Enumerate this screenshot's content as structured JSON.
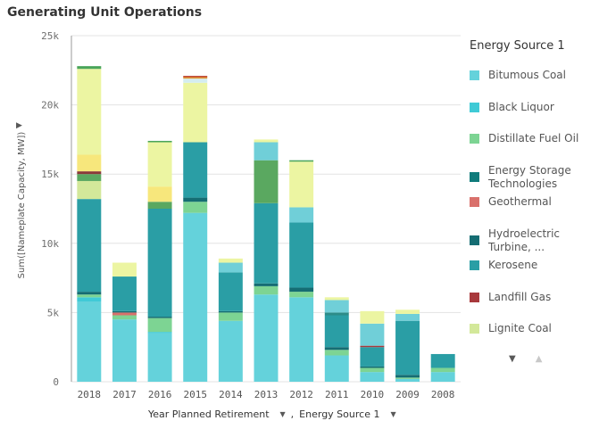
{
  "chart_data": {
    "type": "bar",
    "stacked": true,
    "title": "Generating Unit Operations",
    "xlabel": "Year Planned Retirement",
    "ylabel": "Sum([Nameplate Capacity, MW])",
    "ylim": [
      0,
      25000
    ],
    "yticks": [
      0,
      5000,
      10000,
      15000,
      20000,
      25000
    ],
    "ytick_labels": [
      "0",
      "5k",
      "10k",
      "15k",
      "20k",
      "25k"
    ],
    "grid": true,
    "legend_position": "right",
    "categories": [
      "2018",
      "2017",
      "2016",
      "2015",
      "2014",
      "2013",
      "2012",
      "2011",
      "2010",
      "2009",
      "2008"
    ],
    "series": [
      {
        "name": "Bitumous Coal",
        "color": "#64d2db",
        "values": [
          5800,
          4500,
          3500,
          12200,
          4400,
          6300,
          6100,
          1900,
          700,
          200,
          700
        ]
      },
      {
        "name": "Black Liquor",
        "color": "#3fcad6",
        "values": [
          300,
          0,
          100,
          0,
          0,
          0,
          0,
          0,
          0,
          0,
          0
        ]
      },
      {
        "name": "Distillate Fuel Oil",
        "color": "#7dd493",
        "values": [
          200,
          300,
          1000,
          800,
          600,
          600,
          400,
          400,
          300,
          100,
          300
        ]
      },
      {
        "name": "Energy Storage Technologies",
        "color": "#0f7b7b",
        "values": [
          0,
          0,
          0,
          0,
          0,
          0,
          0,
          0,
          0,
          0,
          0
        ]
      },
      {
        "name": "Geothermal",
        "color": "#d9706b",
        "values": [
          0,
          200,
          0,
          0,
          0,
          0,
          0,
          0,
          0,
          0,
          0
        ]
      },
      {
        "name": "Hydroelectric Turbine, ...",
        "color": "#156d73",
        "values": [
          200,
          100,
          100,
          300,
          100,
          200,
          300,
          200,
          100,
          200,
          0
        ]
      },
      {
        "name": "Kerosene",
        "color": "#2a9ea5",
        "values": [
          6700,
          2500,
          7800,
          4000,
          2800,
          5800,
          4700,
          2300,
          1400,
          3900,
          1000
        ]
      },
      {
        "name": "Landfill Gas",
        "color": "#a8393c",
        "values": [
          0,
          0,
          0,
          0,
          0,
          0,
          0,
          0,
          100,
          0,
          0
        ]
      },
      {
        "name": "Lignite Coal",
        "color": "#d3e89a",
        "values": [
          1300,
          0,
          0,
          0,
          0,
          0,
          0,
          0,
          0,
          0,
          0
        ]
      }
    ],
    "other_segments_note": "",
    "extra_stack_layers": [
      {
        "color": "#5aa860",
        "values": [
          500,
          0,
          500,
          0,
          0,
          3100,
          0,
          0,
          0,
          0,
          0
        ]
      },
      {
        "color": "#2c8c89",
        "values": [
          0,
          0,
          0,
          0,
          0,
          0,
          0,
          200,
          0,
          0,
          0
        ]
      },
      {
        "color": "#8b3a3a",
        "values": [
          200,
          0,
          0,
          0,
          0,
          0,
          0,
          0,
          0,
          0,
          0
        ]
      },
      {
        "color": "#f7e77c",
        "values": [
          1200,
          0,
          1100,
          0,
          0,
          0,
          0,
          0,
          0,
          0,
          0
        ]
      },
      {
        "color": "#70cfd8",
        "values": [
          0,
          0,
          0,
          0,
          700,
          1300,
          1100,
          900,
          1600,
          500,
          0
        ]
      },
      {
        "color": "#ecf5a2",
        "values": [
          6200,
          1000,
          3200,
          4300,
          300,
          200,
          3300,
          200,
          900,
          300,
          0
        ]
      },
      {
        "color": "#d4edf0",
        "values": [
          0,
          0,
          0,
          300,
          0,
          0,
          0,
          0,
          0,
          0,
          0
        ]
      },
      {
        "color": "#4aa55a",
        "values": [
          200,
          0,
          100,
          0,
          0,
          0,
          100,
          0,
          0,
          0,
          0
        ]
      },
      {
        "color": "#e0962e",
        "values": [
          0,
          0,
          0,
          100,
          0,
          0,
          0,
          0,
          0,
          0,
          0
        ]
      },
      {
        "color": "#c04a3a",
        "values": [
          0,
          0,
          0,
          100,
          0,
          0,
          0,
          0,
          0,
          0,
          0
        ]
      }
    ]
  },
  "ui": {
    "x_field_label": "Year Planned Retirement",
    "x_field_separator": ",",
    "x_field_label2": "Energy Source 1",
    "legend_title": "Energy Source 1",
    "dropdown_glyph": "▼",
    "expand_glyph": "▶",
    "legend_prev_glyph": "▼",
    "legend_next_glyph": "▲"
  }
}
